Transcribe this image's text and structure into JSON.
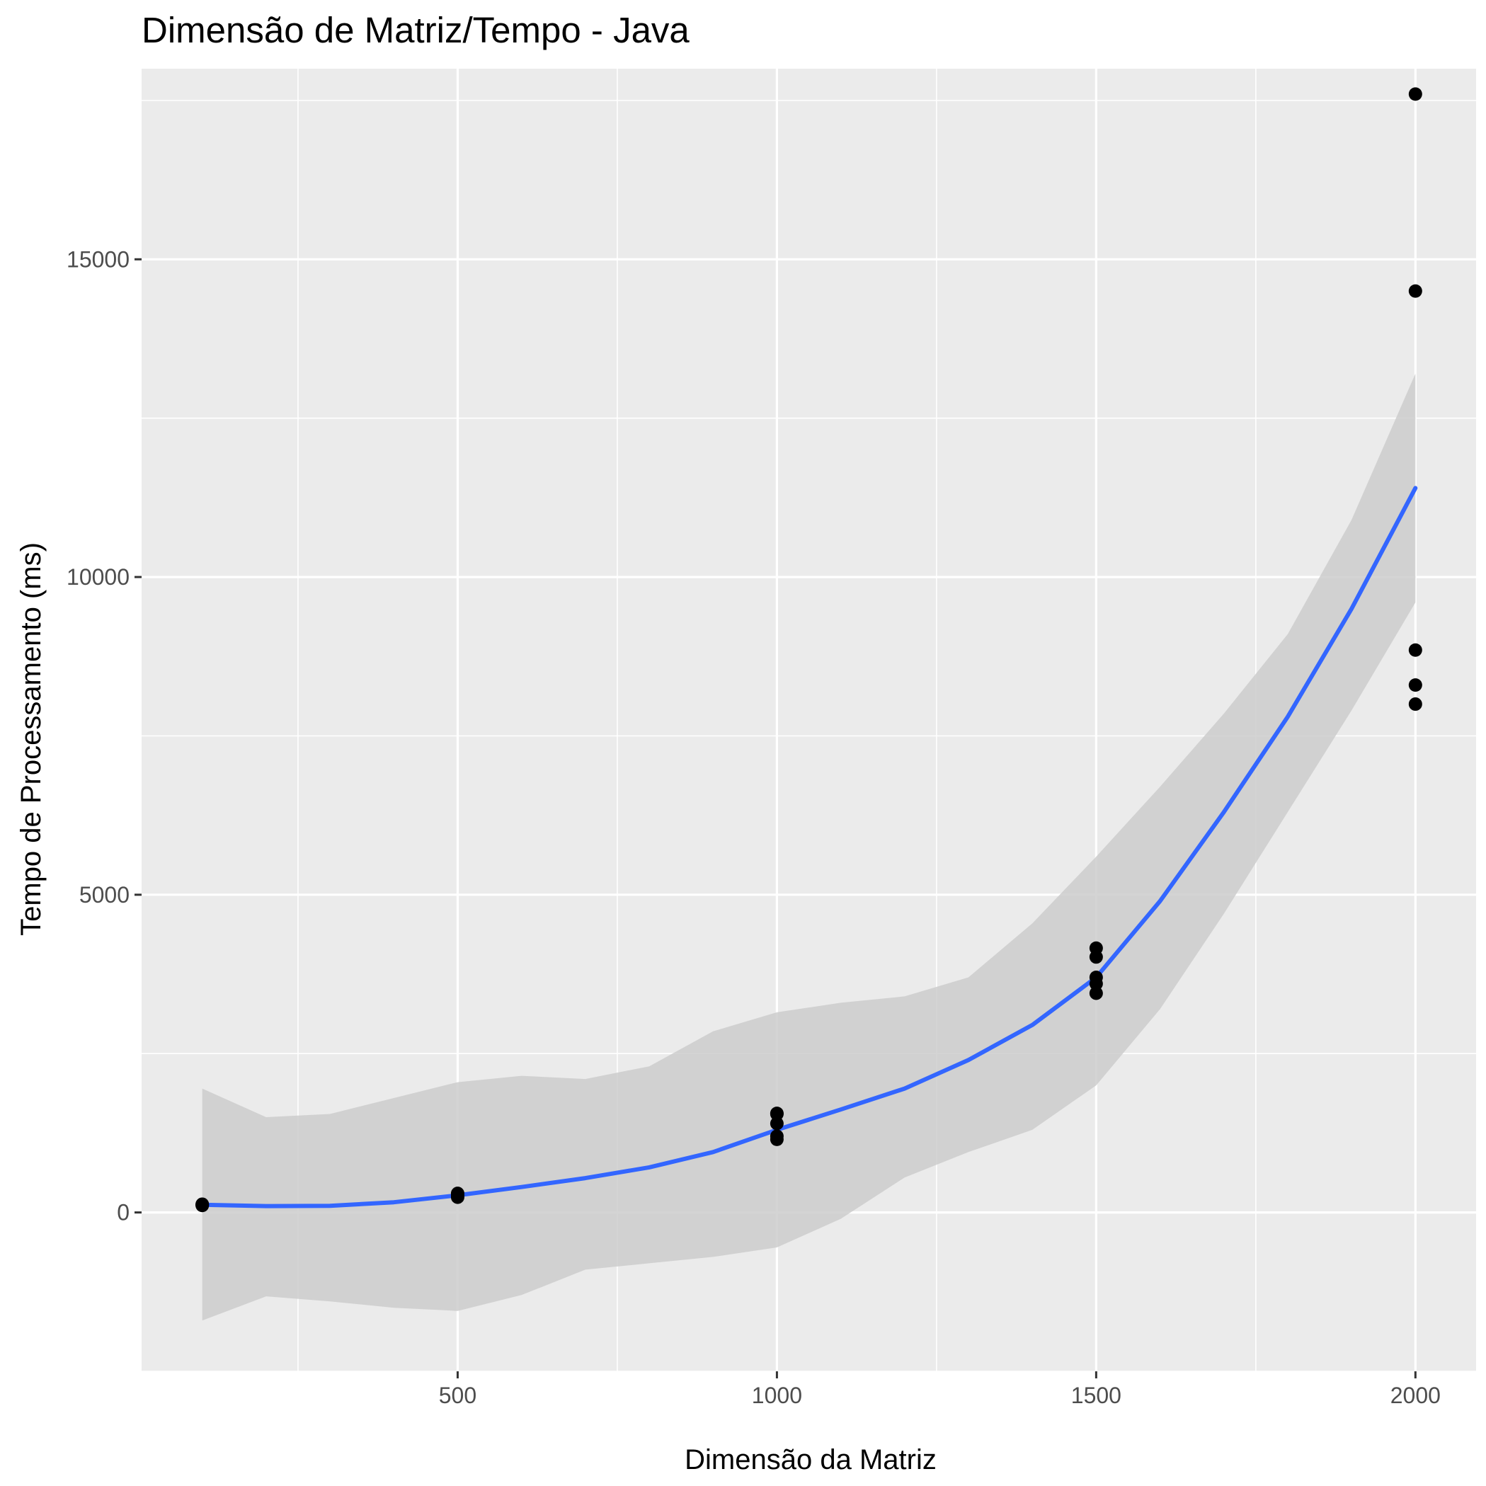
{
  "chart_data": {
    "type": "scatter",
    "title": "Dimensão de Matriz/Tempo - Java",
    "xlabel": "Dimensão da Matriz",
    "ylabel": "Tempo de Processamento (ms)",
    "xlim": [
      5,
      2095
    ],
    "ylim": [
      -2500,
      18000
    ],
    "x_ticks": [
      500,
      1000,
      1500,
      2000
    ],
    "x_tick_labels": [
      "500",
      "1000",
      "1500",
      "2000"
    ],
    "y_ticks": [
      0,
      5000,
      10000,
      15000
    ],
    "y_tick_labels": [
      "0",
      "5000",
      "10000",
      "15000"
    ],
    "grid": true,
    "legend": "none",
    "series": [
      {
        "kind": "points",
        "color": "#000000",
        "x": [
          100,
          100,
          100,
          100,
          100,
          500,
          500,
          500,
          500,
          500,
          1000,
          1000,
          1000,
          1000,
          1000,
          1500,
          1500,
          1500,
          1500,
          1500,
          2000,
          2000,
          2000,
          2000,
          2000
        ],
        "y": [
          110,
          115,
          120,
          125,
          130,
          240,
          260,
          270,
          280,
          300,
          1150,
          1200,
          1400,
          1550,
          1560,
          3450,
          3600,
          3700,
          4020,
          4160,
          8000,
          8300,
          8850,
          14500,
          17600
        ]
      },
      {
        "kind": "smooth",
        "color": "#3366ff",
        "band_color": "#cccccc",
        "x": [
          100,
          200,
          300,
          400,
          500,
          600,
          700,
          800,
          900,
          1000,
          1100,
          1200,
          1300,
          1400,
          1500,
          1600,
          1700,
          1800,
          1900,
          2000
        ],
        "y": [
          120,
          100,
          105,
          160,
          270,
          400,
          540,
          710,
          950,
          1300,
          1620,
          1950,
          2400,
          2950,
          3700,
          4900,
          6300,
          7800,
          9500,
          11400
        ],
        "lower": [
          -1700,
          -1320,
          -1400,
          -1500,
          -1550,
          -1300,
          -900,
          -800,
          -700,
          -550,
          -100,
          550,
          950,
          1300,
          2000,
          3200,
          4700,
          6300,
          7900,
          9600
        ],
        "upper": [
          1950,
          1500,
          1550,
          1800,
          2050,
          2150,
          2100,
          2300,
          2850,
          3150,
          3300,
          3400,
          3700,
          4550,
          5600,
          6700,
          7850,
          9100,
          10900,
          13200
        ]
      }
    ]
  }
}
